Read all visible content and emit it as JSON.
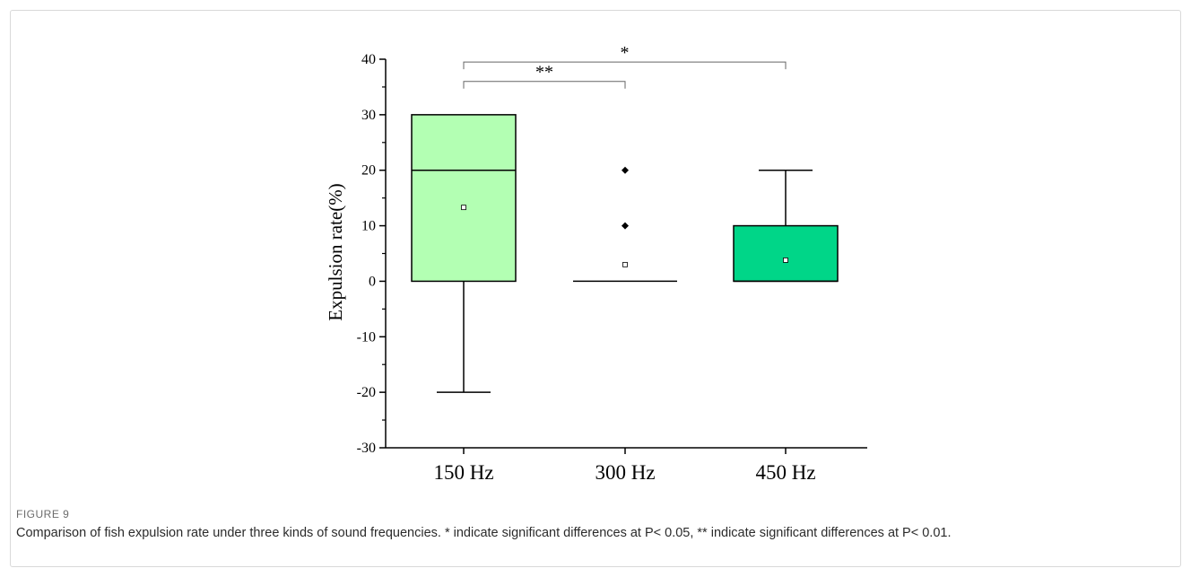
{
  "figure": {
    "label": "FIGURE 9",
    "caption": "Comparison of fish expulsion rate under three kinds of sound frequencies. * indicate significant differences at P< 0.05, ** indicate significant differences at P< 0.01."
  },
  "chart_data": {
    "type": "box",
    "ylabel": "Expulsion rate(%)",
    "ylim": [
      -30,
      40
    ],
    "yticks": [
      -30,
      -20,
      -10,
      0,
      10,
      20,
      30,
      40
    ],
    "ytick_labels": [
      "-30",
      "-20",
      "-10",
      "0",
      "10",
      "20",
      "30",
      "40"
    ],
    "categories": [
      "150 Hz",
      "300 Hz",
      "450 Hz"
    ],
    "boxes": [
      {
        "category": "150 Hz",
        "whisker_low": -20,
        "q1": 0,
        "median": 20,
        "q3": 30,
        "whisker_high": 30,
        "mean": 13.3,
        "outliers": [],
        "color": "#b3ffb3"
      },
      {
        "category": "300 Hz",
        "whisker_low": 0,
        "q1": 0,
        "median": 0,
        "q3": 0,
        "whisker_high": 0,
        "mean": 3,
        "outliers": [
          10,
          20
        ],
        "color": "#b3ffb3"
      },
      {
        "category": "450 Hz",
        "whisker_low": 0,
        "q1": 0,
        "median": 0,
        "q3": 10,
        "whisker_high": 20,
        "mean": 3.8,
        "outliers": [],
        "color": "#00d688"
      }
    ],
    "significance": [
      {
        "from": "150 Hz",
        "to": "300 Hz",
        "label": "**",
        "level": 36
      },
      {
        "from": "150 Hz",
        "to": "450 Hz",
        "label": "*",
        "level": 39.5
      }
    ]
  }
}
